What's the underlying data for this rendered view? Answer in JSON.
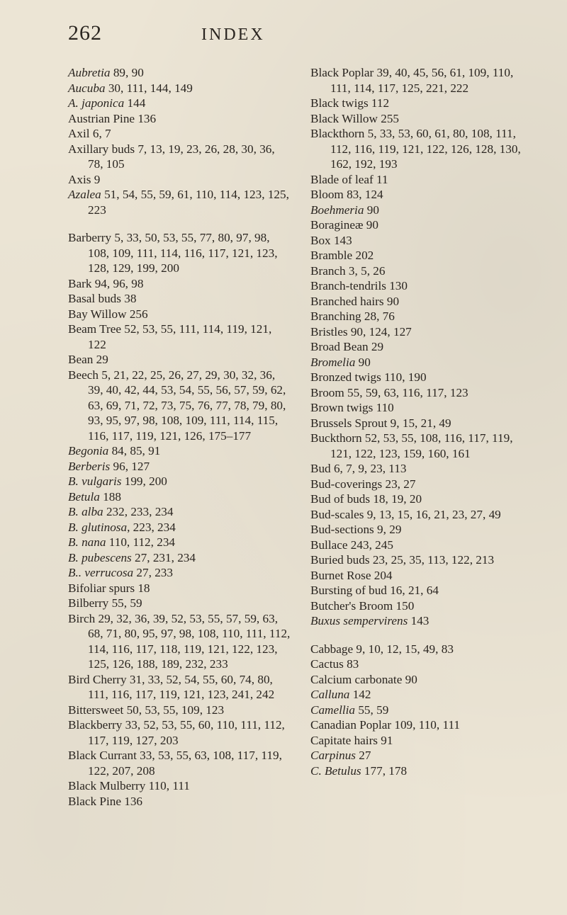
{
  "header": {
    "page_number": "262",
    "title": "INDEX"
  },
  "columns": {
    "left": [
      {
        "html": "<span class='ital'>Aubretia</span> 89, 90"
      },
      {
        "html": "<span class='ital'>Aucuba</span> 30, 111, 144, 149"
      },
      {
        "html": "<span class='ital'>A. japonica</span> 144"
      },
      {
        "html": "Austrian Pine 136"
      },
      {
        "html": "Axil 6, 7"
      },
      {
        "html": "Axillary buds 7, 13, 19, 23, 26, 28, 30, 36, 78, 105"
      },
      {
        "html": "Axis 9"
      },
      {
        "html": "<span class='ital'>Azalea</span> 51, 54, 55, 59, 61, 110, 114, 123, 125, 223"
      },
      {
        "gap": true
      },
      {
        "html": "Barberry 5, 33, 50, 53, 55, 77, 80, 97, 98, 108, 109, 111, 114, 116, 117, 121, 123, 128, 129, 199, 200"
      },
      {
        "html": "Bark 94, 96, 98"
      },
      {
        "html": "Basal buds 38"
      },
      {
        "html": "Bay Willow 256"
      },
      {
        "html": "Beam Tree 52, 53, 55, 111, 114, 119, 121, 122"
      },
      {
        "html": "Bean 29"
      },
      {
        "html": "Beech 5, 21, 22, 25, 26, 27, 29, 30, 32, 36, 39, 40, 42, 44, 53, 54, 55, 56, 57, 59, 62, 63, 69, 71, 72, 73, 75, 76, 77, 78, 79, 80, 93, 95, 97, 98, 108, 109, 111, 114, 115, 116, 117, 119, 121, 126, 175–177"
      },
      {
        "html": "<span class='ital'>Begonia</span> 84, 85, 91"
      },
      {
        "html": "<span class='ital'>Berberis</span> 96, 127"
      },
      {
        "html": "<span class='ital'>B. vulgaris</span> 199, 200"
      },
      {
        "html": "<span class='ital'>Betula</span> 188"
      },
      {
        "html": "<span class='ital'>B. alba</span> 232, 233, 234"
      },
      {
        "html": "<span class='ital'>B. glutinosa</span>, 223, 234"
      },
      {
        "html": "<span class='ital'>B. nana</span> 110, 112, 234"
      },
      {
        "html": "<span class='ital'>B. pubescens</span> 27, 231, 234"
      },
      {
        "html": "<span class='ital'>B.. verrucosa</span> 27, 233"
      },
      {
        "html": "Bifoliar spurs 18"
      },
      {
        "html": "Bilberry 55, 59"
      },
      {
        "html": "Birch 29, 32, 36, 39, 52, 53, 55, 57, 59, 63, 68, 71, 80, 95, 97, 98, 108, 110, 111, 112, 114, 116, 117, 118, 119, 121, 122, 123, 125, 126, 188, 189, 232, 233"
      },
      {
        "html": "Bird Cherry 31, 33, 52, 54, 55, 60, 74, 80, 111, 116, 117, 119, 121, 123, 241, 242"
      },
      {
        "html": "Bittersweet 50, 53, 55, 109, 123"
      },
      {
        "html": "Blackberry 33, 52, 53, 55, 60, 110, 111, 112, 117, 119, 127, 203"
      },
      {
        "html": "Black Currant 33, 53, 55, 63, 108, 117, 119, 122, 207, 208"
      },
      {
        "html": "Black Mulberry 110, 111"
      },
      {
        "html": "Black Pine 136"
      }
    ],
    "right": [
      {
        "html": "Black Poplar 39, 40, 45, 56, 61, 109, 110, 111, 114, 117, 125, 221, 222"
      },
      {
        "html": "Black twigs 112"
      },
      {
        "html": "Black Willow 255"
      },
      {
        "html": "Blackthorn 5, 33, 53, 60, 61, 80, 108, 111, 112, 116, 119, 121, 122, 126, 128, 130, 162, 192, 193"
      },
      {
        "html": "Blade of leaf 11"
      },
      {
        "html": "Bloom 83, 124"
      },
      {
        "html": "<span class='ital'>Boehmeria</span> 90"
      },
      {
        "html": "Boragineæ 90"
      },
      {
        "html": "Box 143"
      },
      {
        "html": "Bramble 202"
      },
      {
        "html": "Branch 3, 5, 26"
      },
      {
        "html": "Branch-tendrils 130"
      },
      {
        "html": "Branched hairs 90"
      },
      {
        "html": "Branching 28, 76"
      },
      {
        "html": "Bristles 90, 124, 127"
      },
      {
        "html": "Broad Bean 29"
      },
      {
        "html": "<span class='ital'>Bromelia</span> 90"
      },
      {
        "html": "Bronzed twigs 110, 190"
      },
      {
        "html": "Broom 55, 59, 63, 116, 117, 123"
      },
      {
        "html": "Brown twigs 110"
      },
      {
        "html": "Brussels Sprout 9, 15, 21, 49"
      },
      {
        "html": "Buckthorn 52, 53, 55, 108, 116, 117, 119, 121, 122, 123, 159, 160, 161"
      },
      {
        "html": "Bud 6, 7, 9, 23, 113"
      },
      {
        "html": "Bud-coverings 23, 27"
      },
      {
        "html": "Bud of buds 18, 19, 20"
      },
      {
        "html": "Bud-scales 9, 13, 15, 16, 21, 23, 27, 49"
      },
      {
        "html": "Bud-sections 9, 29"
      },
      {
        "html": "Bullace 243, 245"
      },
      {
        "html": "Buried buds 23, 25, 35, 113, 122, 213"
      },
      {
        "html": "Burnet Rose 204"
      },
      {
        "html": "Bursting of bud 16, 21, 64"
      },
      {
        "html": "Butcher's Broom 150"
      },
      {
        "html": "<span class='ital'>Buxus sempervirens</span> 143"
      },
      {
        "gap": true
      },
      {
        "html": "Cabbage 9, 10, 12, 15, 49, 83"
      },
      {
        "html": "Cactus 83"
      },
      {
        "html": "Calcium carbonate 90"
      },
      {
        "html": "<span class='ital'>Calluna</span> 142"
      },
      {
        "html": "<span class='ital'>Camellia</span> 55, 59"
      },
      {
        "html": "Canadian Poplar 109, 110, 111"
      },
      {
        "html": "Capitate hairs 91"
      },
      {
        "html": "<span class='ital'>Carpinus</span> 27"
      },
      {
        "html": "<span class='ital'>C. Betulus</span> 177, 178"
      }
    ]
  }
}
